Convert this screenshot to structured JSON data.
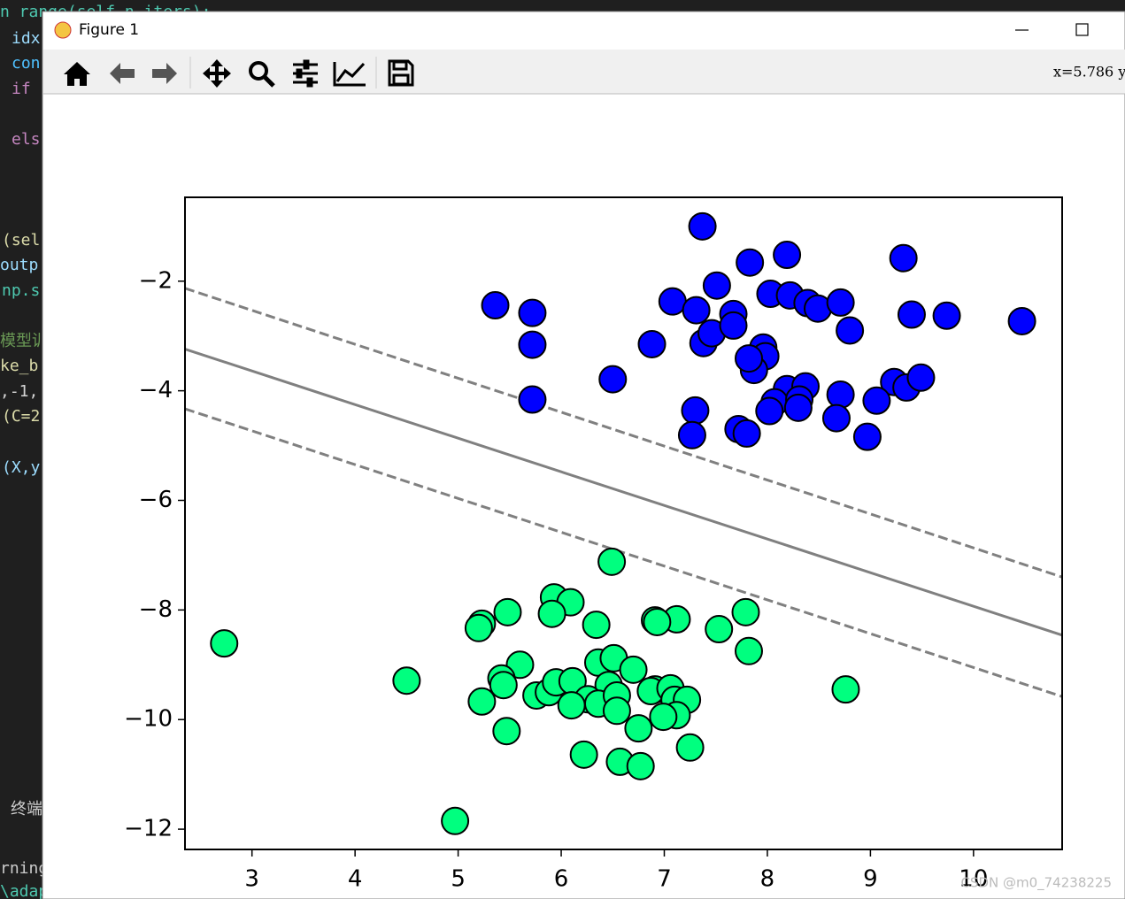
{
  "window": {
    "title": "Figure 1",
    "coordinates": "x=5.786 y",
    "watermark": "CSDN @m0_74238225"
  },
  "editor": {
    "lines": [
      "n range(self.n_iters):",
      "idx",
      "con",
      "if",
      "els",
      "(sel",
      "outp",
      "np.s",
      "模型训",
      "ke_b",
      ",-1,",
      "(C=2",
      "(X,y",
      "终端",
      "rning",
      "\\adap"
    ]
  },
  "chart_data": {
    "type": "scatter",
    "xlim": [
      2.35,
      10.86
    ],
    "xticks": [
      3,
      4,
      5,
      6,
      7,
      8,
      9,
      10
    ],
    "ylim": [
      -12.37,
      -0.47
    ],
    "yticks": [
      {
        "value": -2,
        "label": "−2"
      },
      {
        "value": -4,
        "label": "−4"
      },
      {
        "value": -6,
        "label": "−6"
      },
      {
        "value": -8,
        "label": "−8"
      },
      {
        "value": -10,
        "label": "−10"
      },
      {
        "value": -12,
        "label": "−12"
      }
    ],
    "edgecolor": "#000000",
    "series": [
      {
        "color": "#0000ff",
        "x": [
          7.37,
          9.32,
          8.19,
          7.83,
          7.51,
          8.03,
          8.22,
          8.39,
          8.49,
          8.71,
          7.08,
          7.31,
          7.67,
          9.4,
          9.74,
          10.47,
          5.36,
          5.72,
          5.72,
          6.88,
          7.38,
          7.46,
          7.67,
          7.96,
          7.98,
          7.87,
          7.82,
          8.8,
          6.5,
          5.72,
          8.19,
          8.37,
          8.71,
          8.07,
          8.31,
          8.02,
          8.3,
          9.23,
          9.35,
          9.49,
          9.06,
          8.67,
          7.3,
          7.27,
          7.72,
          7.8,
          8.97
        ],
        "values": [
          -1.0,
          -1.58,
          -1.52,
          -1.66,
          -2.08,
          -2.23,
          -2.26,
          -2.4,
          -2.5,
          -2.39,
          -2.37,
          -2.53,
          -2.6,
          -2.61,
          -2.63,
          -2.73,
          -2.44,
          -2.58,
          -3.16,
          -3.15,
          -3.13,
          -2.95,
          -2.81,
          -3.21,
          -3.37,
          -3.62,
          -3.41,
          -2.9,
          -3.79,
          -4.16,
          -3.97,
          -3.92,
          -4.07,
          -4.21,
          -4.16,
          -4.37,
          -4.31,
          -3.84,
          -3.94,
          -3.76,
          -4.18,
          -4.5,
          -4.36,
          -4.81,
          -4.7,
          -4.78,
          -4.84
        ]
      },
      {
        "color": "#00ff7f",
        "x": [
          6.49,
          5.93,
          6.09,
          5.91,
          5.48,
          5.23,
          5.2,
          6.34,
          6.91,
          7.12,
          6.93,
          7.79,
          7.53,
          7.82,
          2.73,
          4.5,
          5.6,
          5.42,
          5.44,
          5.23,
          5.76,
          5.88,
          5.95,
          6.11,
          6.36,
          6.51,
          6.7,
          6.46,
          6.26,
          6.36,
          6.54,
          6.54,
          6.91,
          6.87,
          7.06,
          7.1,
          7.22,
          7.12,
          6.99,
          6.75,
          6.1,
          5.47,
          8.76,
          6.22,
          6.57,
          6.77,
          7.25,
          4.97
        ],
        "values": [
          -7.12,
          -7.77,
          -7.86,
          -8.07,
          -8.04,
          -8.25,
          -8.33,
          -8.27,
          -8.19,
          -8.17,
          -8.22,
          -8.04,
          -8.35,
          -8.75,
          -8.61,
          -9.29,
          -9.0,
          -9.25,
          -9.37,
          -9.67,
          -9.56,
          -9.5,
          -9.32,
          -9.3,
          -8.96,
          -8.88,
          -9.09,
          -9.37,
          -9.63,
          -9.71,
          -9.56,
          -9.84,
          -9.45,
          -9.48,
          -9.43,
          -9.64,
          -9.64,
          -9.92,
          -9.95,
          -10.16,
          -9.74,
          -10.21,
          -9.45,
          -10.64,
          -10.77,
          -10.85,
          -10.51,
          -11.85
        ]
      }
    ],
    "lines": [
      {
        "style": "dashed",
        "color": "#808080",
        "x": [
          2.35,
          10.86
        ],
        "values": [
          -2.13,
          -7.4
        ]
      },
      {
        "style": "solid",
        "color": "#808080",
        "x": [
          2.35,
          10.86
        ],
        "values": [
          -3.24,
          -8.46
        ]
      },
      {
        "style": "dashed",
        "color": "#808080",
        "x": [
          2.35,
          10.86
        ],
        "values": [
          -4.33,
          -9.58
        ]
      }
    ]
  }
}
